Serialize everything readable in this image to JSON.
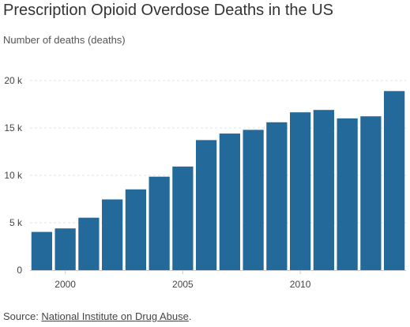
{
  "chart_data": {
    "type": "bar",
    "title": "Prescription Opioid Overdose Deaths in the US",
    "ylabel": "Number of deaths (deaths)",
    "xlabel": "",
    "categories": [
      1999,
      2000,
      2001,
      2002,
      2003,
      2004,
      2005,
      2006,
      2007,
      2008,
      2009,
      2010,
      2011,
      2012,
      2013,
      2014
    ],
    "values": [
      4030,
      4400,
      5530,
      7460,
      8520,
      9860,
      10930,
      13720,
      14410,
      14800,
      15600,
      16650,
      16900,
      16010,
      16230,
      18890
    ],
    "ylim": [
      0,
      20000
    ],
    "yticks": [
      {
        "value": 0,
        "label": "0"
      },
      {
        "value": 5000,
        "label": "5 k"
      },
      {
        "value": 10000,
        "label": "10 k"
      },
      {
        "value": 15000,
        "label": "15 k"
      },
      {
        "value": 20000,
        "label": "20 k"
      }
    ],
    "xticks": [
      {
        "value": 2000,
        "label": "2000"
      },
      {
        "value": 2005,
        "label": "2005"
      },
      {
        "value": 2010,
        "label": "2010"
      }
    ],
    "grid": true,
    "bar_color": "#23699a",
    "grid_color": "#e6e6e6",
    "axis_color": "#cccccc"
  },
  "source": {
    "prefix": "Source: ",
    "link_text": "National Institute on Drug Abuse",
    "suffix": "."
  }
}
